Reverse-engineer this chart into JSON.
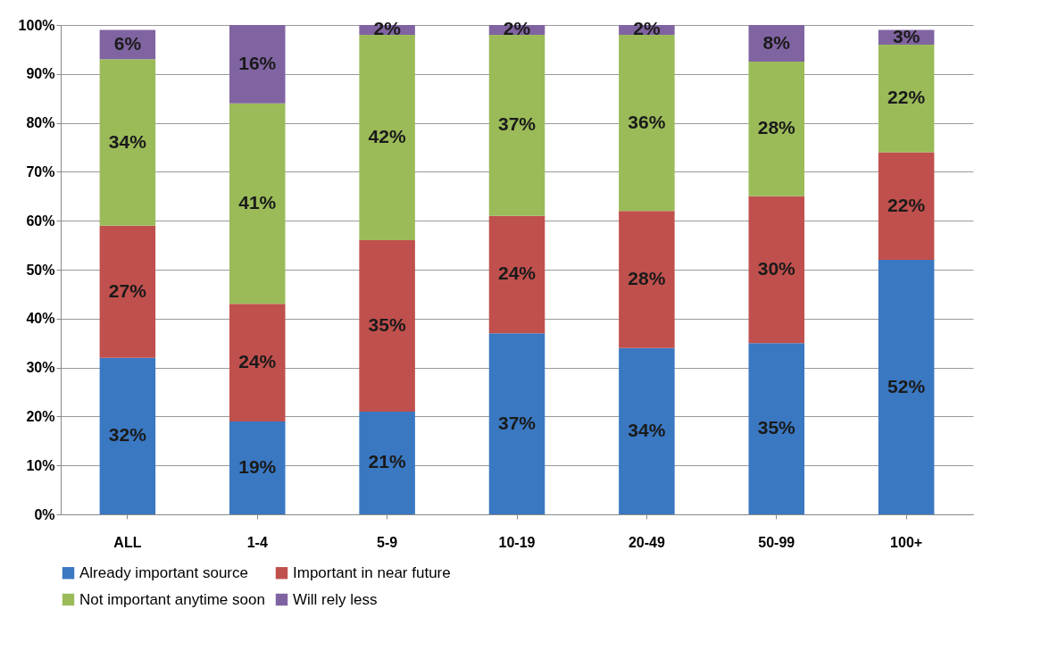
{
  "chart_data": {
    "type": "bar",
    "stacked": true,
    "categories": [
      "ALL",
      "1-4",
      "5-9",
      "10-19",
      "20-49",
      "50-99",
      "100+"
    ],
    "series": [
      {
        "name": "Already important source",
        "color": "#3a78c2",
        "values": [
          32,
          19,
          21,
          37,
          34,
          35,
          52
        ],
        "value_labels": [
          "32%",
          "19%",
          "21%",
          "37%",
          "34%",
          "35%",
          "52%"
        ]
      },
      {
        "name": "Important in near future",
        "color": "#c0504d",
        "values": [
          27,
          24,
          35,
          24,
          28,
          30,
          22
        ],
        "value_labels": [
          "27%",
          "24%",
          "35%",
          "24%",
          "28%",
          "30%",
          "22%"
        ]
      },
      {
        "name": "Not important anytime soon",
        "color": "#9bbb59",
        "values": [
          34,
          41,
          42,
          37,
          36,
          27.5,
          22
        ],
        "value_labels": [
          "34%",
          "41%",
          "42%",
          "37%",
          "36%",
          "28%",
          "22%"
        ]
      },
      {
        "name": "Will rely less",
        "color": "#8064a2",
        "values": [
          6,
          16,
          2,
          2,
          2,
          7.5,
          3
        ],
        "value_labels": [
          "6%",
          "16%",
          "2%",
          "2%",
          "2%",
          "8%",
          "3%"
        ]
      }
    ],
    "ylim": [
      0,
      100
    ],
    "yticks": [
      {
        "value": 0,
        "label": "0%"
      },
      {
        "value": 10,
        "label": "10%"
      },
      {
        "value": 20,
        "label": "20%"
      },
      {
        "value": 30,
        "label": "30%"
      },
      {
        "value": 40,
        "label": "40%"
      },
      {
        "value": 50,
        "label": "50%"
      },
      {
        "value": 60,
        "label": "60%"
      },
      {
        "value": 70,
        "label": "70%"
      },
      {
        "value": 80,
        "label": "80%"
      },
      {
        "value": 90,
        "label": "90%"
      },
      {
        "value": 100,
        "label": "100%"
      }
    ],
    "grid": "y",
    "legend": "bottom"
  }
}
